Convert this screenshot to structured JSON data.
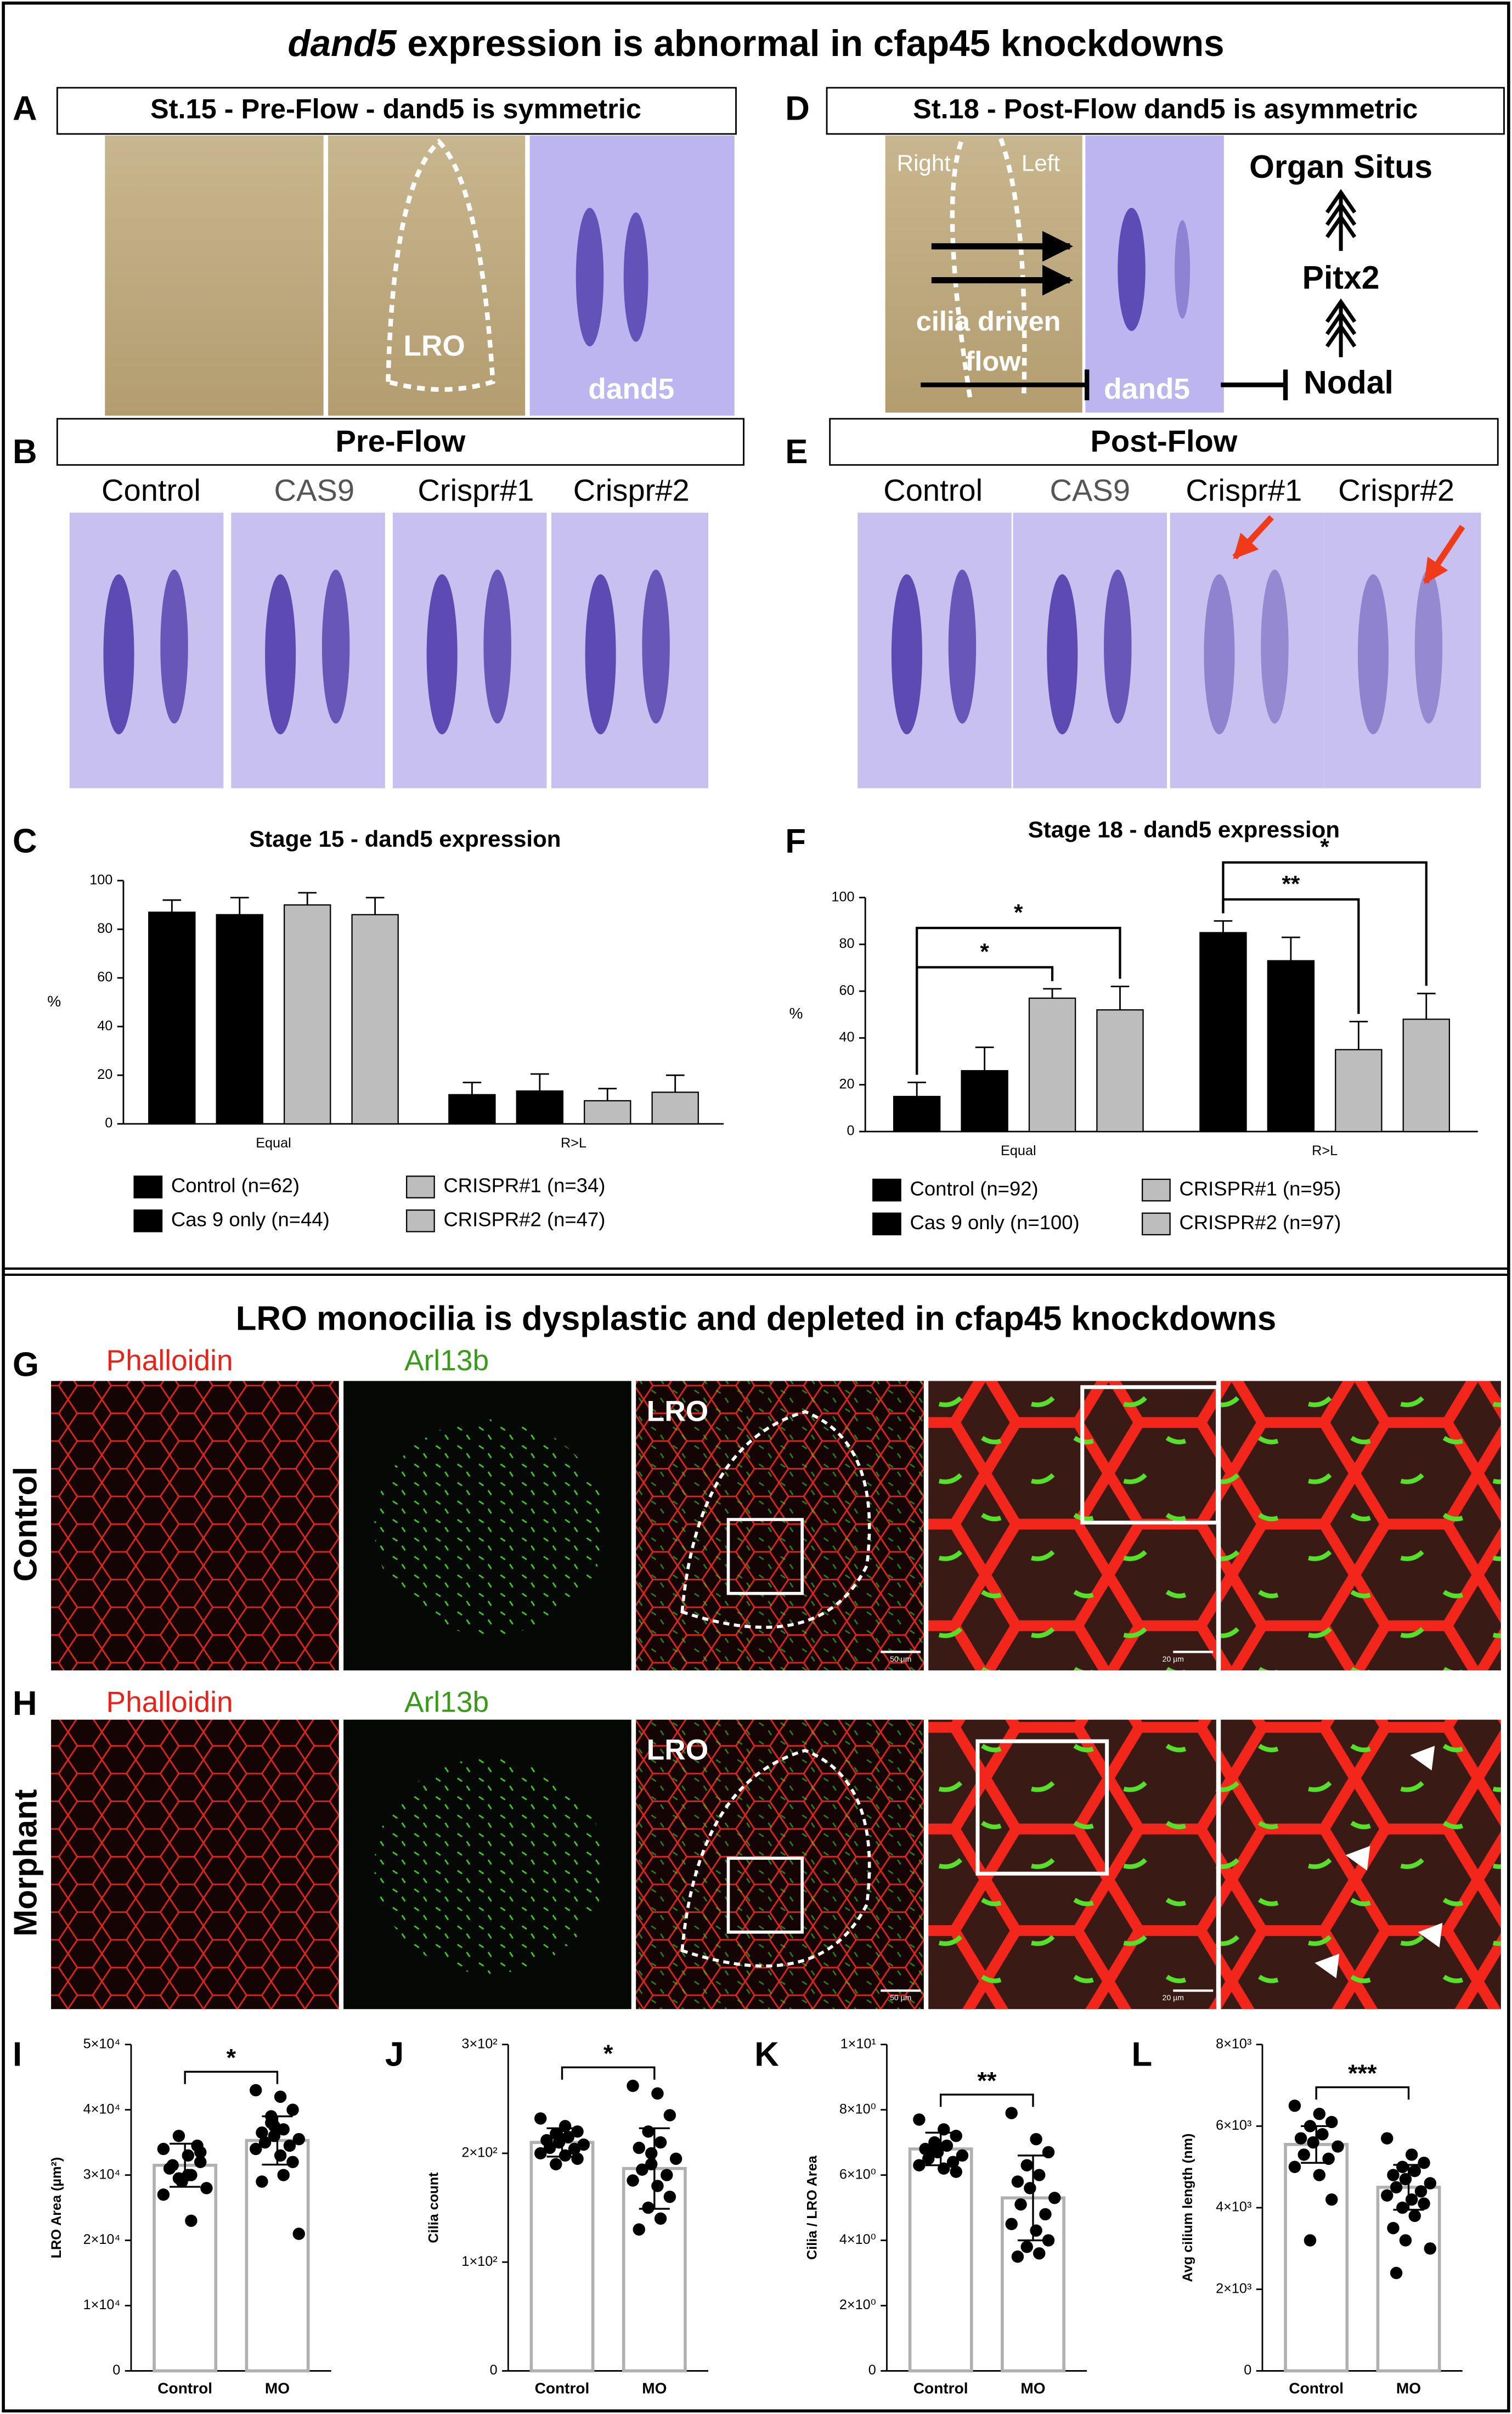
{
  "figure": {
    "title": {
      "italic": "dand5",
      "rest": "expression is abnormal in cfap45 knockdowns"
    },
    "a": {
      "letter": "A",
      "heading": "St.15 - Pre-Flow - dand5 is symmetric",
      "region": "LRO",
      "probe": "dand5"
    },
    "d": {
      "letter": "D",
      "heading": "St.18 - Post-Flow dand5 is asymmetric",
      "sides": [
        "Right",
        "Left"
      ],
      "flow": [
        "cilia driven",
        "flow"
      ],
      "probe": "dand5",
      "pathway": [
        "Organ Situs",
        "Pitx2",
        "Nodal"
      ]
    },
    "b": {
      "letter": "B",
      "heading": "Pre-Flow",
      "columns": [
        "Control",
        "CAS9",
        "Crispr#1",
        "Crispr#2"
      ]
    },
    "e": {
      "letter": "E",
      "heading": "Post-Flow",
      "columns": [
        "Control",
        "CAS9",
        "Crispr#1",
        "Crispr#2"
      ]
    },
    "section_title": "LRO monocilia is dysplastic and depleted in cfap45 knockdowns",
    "g": {
      "letter": "G",
      "row": "Control",
      "stains": [
        "Phalloidin",
        "Arl13b"
      ],
      "region": "LRO",
      "scale_bars": [
        "50 µm",
        "20 µm"
      ]
    },
    "h": {
      "letter": "H",
      "row": "Morphant",
      "stains": [
        "Phalloidin",
        "Arl13b"
      ],
      "region": "LRO",
      "scale_bars": [
        "50 µm",
        "20 µm"
      ]
    }
  },
  "chart_data": [
    {
      "type": "bar",
      "panel": "C",
      "title": "Stage 15 - dand5 expression",
      "y_label": "%",
      "categories": [
        "Equal",
        "R>L"
      ],
      "ylim": [
        0,
        100
      ],
      "yticks": [
        0,
        20,
        40,
        60,
        80,
        100
      ],
      "series": [
        {
          "name": "Control (n=62)",
          "color": "#000000",
          "values": [
            87,
            12
          ],
          "errors": [
            5,
            5
          ]
        },
        {
          "name": "Cas 9 only (n=44)",
          "color": "#000000",
          "values": [
            86,
            13.5
          ],
          "errors": [
            7,
            7
          ]
        },
        {
          "name": "CRISPR#1 (n=34)",
          "color": "#bdbdbd",
          "values": [
            90,
            9.5
          ],
          "errors": [
            5,
            5
          ]
        },
        {
          "name": "CRISPR#2 (n=47)",
          "color": "#bdbdbd",
          "values": [
            86,
            13
          ],
          "errors": [
            7,
            7
          ]
        }
      ]
    },
    {
      "type": "bar",
      "panel": "F",
      "title": "Stage 18 - dand5 expression",
      "y_label": "%",
      "categories": [
        "Equal",
        "R>L"
      ],
      "ylim": [
        0,
        100
      ],
      "yticks": [
        0,
        20,
        40,
        60,
        80,
        100
      ],
      "series": [
        {
          "name": "Control (n=92)",
          "color": "#000000",
          "values": [
            15,
            85
          ],
          "errors": [
            6,
            5
          ]
        },
        {
          "name": "Cas 9 only (n=100)",
          "color": "#000000",
          "values": [
            26,
            73
          ],
          "errors": [
            10,
            10
          ]
        },
        {
          "name": "CRISPR#1 (n=95)",
          "color": "#bdbdbd",
          "values": [
            57,
            35
          ],
          "errors": [
            4,
            12
          ]
        },
        {
          "name": "CRISPR#2 (n=97)",
          "color": "#bdbdbd",
          "values": [
            52,
            48
          ],
          "errors": [
            10,
            11
          ]
        }
      ],
      "significance": [
        {
          "label": "*",
          "category": 0,
          "from": 0,
          "to": 2
        },
        {
          "label": "*",
          "category": 0,
          "from": 0,
          "to": 3
        },
        {
          "label": "**",
          "category": 1,
          "from": 0,
          "to": 2
        },
        {
          "label": "*",
          "category": 1,
          "from": 0,
          "to": 3
        }
      ]
    },
    {
      "type": "dotplot",
      "panel": "I",
      "y_label": "LRO Area (µm²)",
      "categories": [
        "Control",
        "MO"
      ],
      "values": [
        31500,
        35300
      ],
      "errors": [
        3300,
        3700
      ],
      "bar_color": "#b0b0b0",
      "point_color": "#000000",
      "points": [
        [
          34000,
          33000,
          32000,
          36000,
          30000,
          31000,
          29000,
          28000,
          31500,
          34500,
          27000,
          30000,
          33500,
          29500,
          23000
        ],
        [
          43000,
          42000,
          40000,
          38000,
          37000,
          36500,
          36000,
          35500,
          35000,
          34500,
          34000,
          33000,
          32000,
          39000,
          30000,
          29000,
          37500,
          21000
        ]
      ],
      "ylim": [
        0,
        50000
      ],
      "yticks": [
        0,
        {
          "value": 10000,
          "label": "1×10⁴"
        },
        {
          "value": 20000,
          "label": "2×10⁴"
        },
        {
          "value": 30000,
          "label": "3×10⁴"
        },
        {
          "value": 40000,
          "label": "4×10⁴"
        },
        {
          "value": 50000,
          "label": "5×10⁴"
        }
      ],
      "significance": "*"
    },
    {
      "type": "dotplot",
      "panel": "J",
      "y_label": "Cilia count",
      "categories": [
        "Control",
        "MO"
      ],
      "values": [
        210,
        186
      ],
      "errors": [
        13,
        37
      ],
      "bar_color": "#b0b0b0",
      "point_color": "#000000",
      "points": [
        [
          232,
          225,
          220,
          218,
          215,
          212,
          210,
          208,
          205,
          204,
          200,
          198,
          195,
          190,
          215
        ],
        [
          262,
          255,
          235,
          220,
          210,
          205,
          200,
          195,
          185,
          180,
          175,
          170,
          160,
          150,
          140,
          130,
          190
        ]
      ],
      "ylim": [
        0,
        300
      ],
      "yticks": [
        0,
        {
          "value": 100,
          "label": "1×10²"
        },
        {
          "value": 200,
          "label": "2×10²"
        },
        {
          "value": 300,
          "label": "3×10²"
        }
      ],
      "significance": "*"
    },
    {
      "type": "dotplot",
      "panel": "K",
      "y_label": "Cilia / LRO Area",
      "categories": [
        "Control",
        "MO"
      ],
      "values": [
        6.8,
        5.3
      ],
      "errors": [
        0.5,
        1.3
      ],
      "bar_color": "#b0b0b0",
      "point_color": "#000000",
      "points": [
        [
          7.7,
          7.4,
          7.2,
          7.0,
          6.9,
          6.8,
          6.7,
          6.6,
          6.5,
          6.4,
          6.3,
          6.2,
          6.1,
          6.8
        ],
        [
          7.9,
          7.1,
          6.7,
          6.3,
          6.0,
          5.8,
          5.6,
          5.3,
          5.1,
          4.8,
          4.5,
          4.3,
          4.0,
          3.8,
          3.6,
          3.5
        ]
      ],
      "ylim": [
        0,
        10
      ],
      "yticks": [
        0,
        {
          "value": 2,
          "label": "2×10⁰"
        },
        {
          "value": 4,
          "label": "4×10⁰"
        },
        {
          "value": 6,
          "label": "6×10⁰"
        },
        {
          "value": 8,
          "label": "8×10⁰"
        },
        {
          "value": 10,
          "label": "1×10¹"
        }
      ],
      "significance": "**"
    },
    {
      "type": "dotplot",
      "panel": "L",
      "y_label": "Avg cilium length (nm)",
      "categories": [
        "Control",
        "MO"
      ],
      "values": [
        5550,
        4500
      ],
      "errors": [
        450,
        550
      ],
      "bar_color": "#b0b0b0",
      "point_color": "#000000",
      "points": [
        [
          6500,
          6300,
          6100,
          6000,
          5800,
          5700,
          5600,
          5500,
          5300,
          5200,
          5000,
          4800,
          4200,
          3200
        ],
        [
          5700,
          5300,
          5100,
          5000,
          4900,
          4800,
          4700,
          4600,
          4500,
          4400,
          4300,
          4200,
          4100,
          4000,
          3800,
          3500,
          3200,
          3000,
          2400
        ]
      ],
      "ylim": [
        0,
        8000
      ],
      "yticks": [
        0,
        {
          "value": 2000,
          "label": "2×10³"
        },
        {
          "value": 4000,
          "label": "4×10³"
        },
        {
          "value": 6000,
          "label": "6×10³"
        },
        {
          "value": 8000,
          "label": "8×10³"
        }
      ],
      "significance": "***"
    }
  ]
}
